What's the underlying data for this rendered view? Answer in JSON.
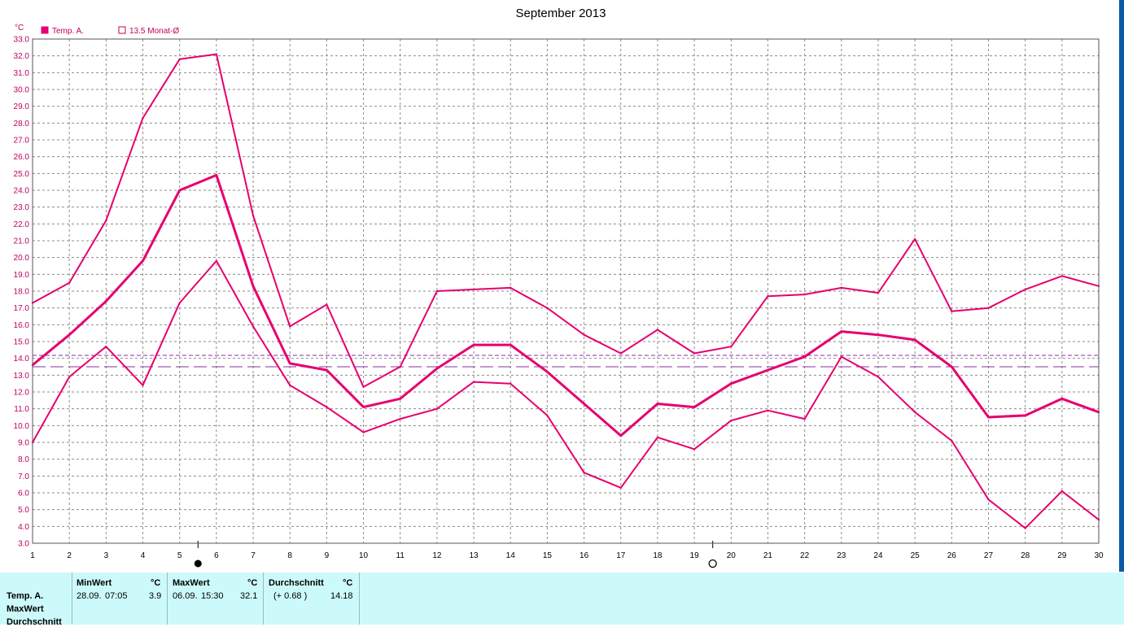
{
  "chart_data": {
    "type": "line",
    "title": "September 2013",
    "ylabel": "°C",
    "ylim": [
      3.0,
      33.0
    ],
    "y_step": 1.0,
    "xlim": [
      1,
      30
    ],
    "categories": [
      "1",
      "2",
      "3",
      "4",
      "5",
      "6",
      "7",
      "8",
      "9",
      "10",
      "11",
      "12",
      "13",
      "14",
      "15",
      "16",
      "17",
      "18",
      "19",
      "20",
      "21",
      "22",
      "23",
      "24",
      "25",
      "26",
      "27",
      "28",
      "29",
      "30"
    ],
    "grid": true,
    "legend_position": "top-left",
    "legend": [
      {
        "label": "Temp. A.",
        "marker": "filled-square"
      },
      {
        "label": "13.5 Monat-Ø",
        "marker": "open-square"
      }
    ],
    "series": [
      {
        "role": "max",
        "values": [
          17.3,
          18.5,
          22.2,
          28.3,
          31.8,
          32.1,
          22.5,
          15.9,
          17.2,
          12.3,
          13.5,
          18.0,
          18.1,
          18.2,
          17.0,
          15.4,
          14.3,
          15.7,
          14.3,
          14.7,
          17.7,
          17.8,
          18.2,
          17.9,
          21.1,
          16.8,
          17.0,
          18.1,
          18.9,
          18.3
        ]
      },
      {
        "role": "avg",
        "values": [
          13.6,
          15.4,
          17.4,
          19.8,
          24.0,
          24.9,
          18.3,
          13.7,
          13.3,
          11.1,
          11.6,
          13.4,
          14.8,
          14.8,
          13.2,
          11.3,
          9.4,
          11.3,
          11.1,
          12.5,
          13.3,
          14.1,
          15.6,
          15.4,
          15.1,
          13.5,
          10.5,
          10.6,
          11.6,
          10.8
        ]
      },
      {
        "role": "min",
        "values": [
          9.0,
          12.9,
          14.7,
          12.4,
          17.3,
          19.8,
          15.9,
          12.4,
          11.1,
          9.6,
          10.4,
          11.0,
          12.6,
          12.5,
          10.6,
          7.2,
          6.3,
          9.3,
          8.6,
          10.3,
          10.9,
          10.4,
          14.1,
          12.9,
          10.8,
          9.1,
          5.6,
          3.9,
          6.1,
          4.4
        ]
      }
    ],
    "reference_lines": [
      {
        "value": 14.18,
        "style": "dashed"
      },
      {
        "value": 13.5,
        "style": "long-dashed"
      }
    ],
    "moon_phases": [
      {
        "day": 5.5,
        "phase": "new-moon"
      },
      {
        "day": 19.5,
        "phase": "full-moon"
      }
    ]
  },
  "colors": {
    "series": "#e6006e",
    "axis_text": "#c0005a",
    "ref_line": "#8a2fa0",
    "grid": "#8c8c8c",
    "panel_bg": "#ccfafa"
  },
  "info": {
    "row_labels": [
      "Temp. A.",
      "MaxWert",
      "Durchschnitt"
    ],
    "min": {
      "header": "MinWert",
      "unit": "°C",
      "date": "28.09.",
      "time": "07:05",
      "value": "3.9"
    },
    "max": {
      "header": "MaxWert",
      "unit": "°C",
      "date": "06.09.",
      "time": "15:30",
      "value": "32.1"
    },
    "avg": {
      "header": "Durchschnitt",
      "unit": "°C",
      "delta": "(+ 0.68 )",
      "value": "14.18"
    }
  }
}
